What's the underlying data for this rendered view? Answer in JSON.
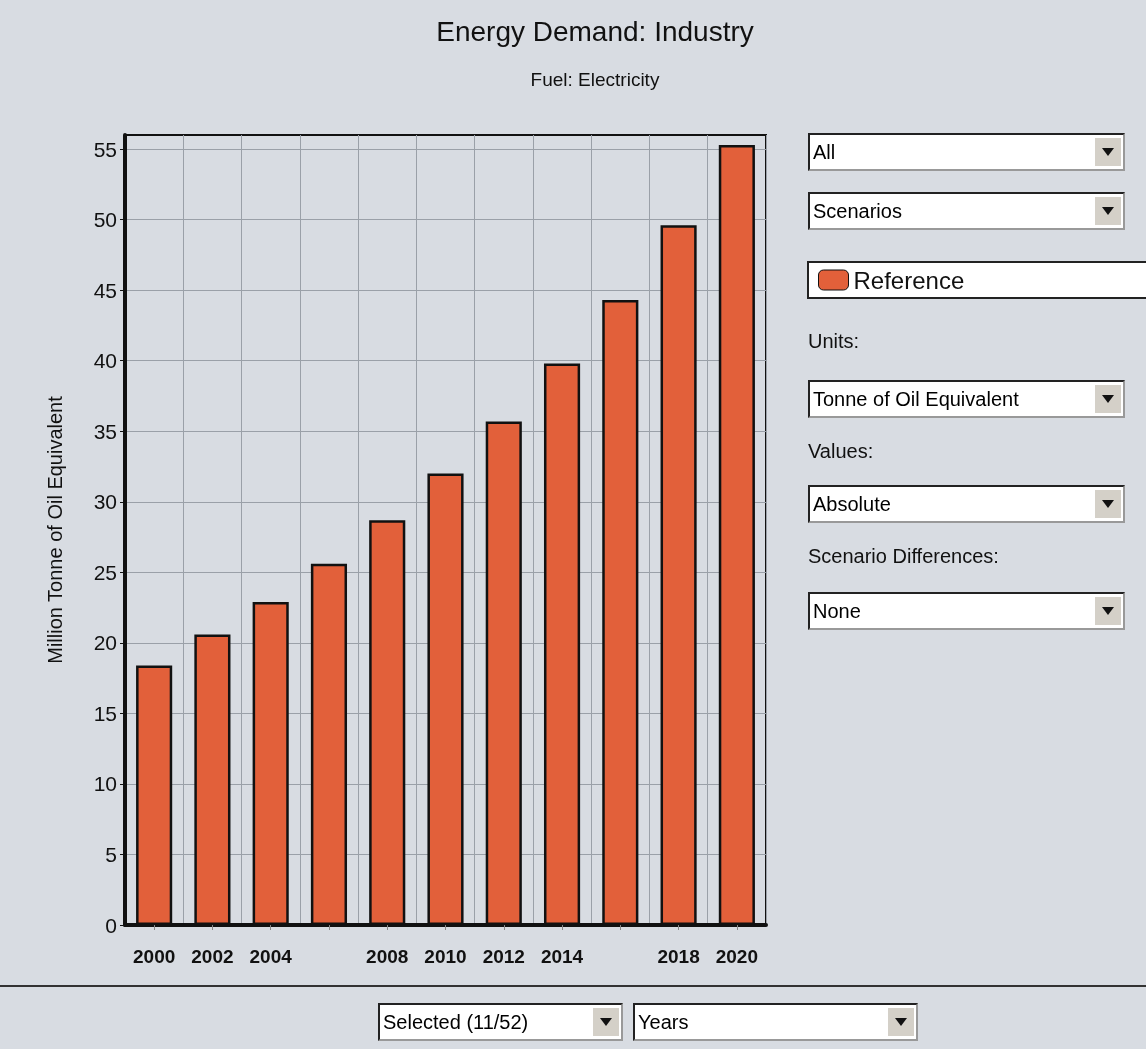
{
  "chart_data": {
    "type": "bar",
    "title": "Energy Demand: Industry",
    "subtitle": "Fuel: Electricity",
    "ylabel": "Million Tonne of Oil Equivalent",
    "categories": [
      "2000",
      "2002",
      "2004",
      null,
      "2008",
      "2010",
      "2012",
      "2014",
      null,
      "2018",
      "2020"
    ],
    "series": [
      {
        "name": "Reference",
        "color": "#e2603a",
        "values": [
          18.4,
          20.6,
          22.9,
          25.6,
          28.7,
          32.0,
          35.7,
          39.8,
          44.3,
          49.6,
          55.3
        ]
      }
    ],
    "ylim": [
      0,
      56
    ],
    "yticks": [
      0,
      5,
      10,
      15,
      20,
      25,
      30,
      35,
      40,
      45,
      50,
      55
    ],
    "grid": true,
    "legend": "right",
    "annotations": [
      "All",
      "Scenarios",
      "Units:",
      "Tonne of Oil Equivalent",
      "Values:",
      "Absolute",
      "Scenario Differences:",
      "None",
      "Selected (11/52)",
      "Years"
    ]
  }
}
